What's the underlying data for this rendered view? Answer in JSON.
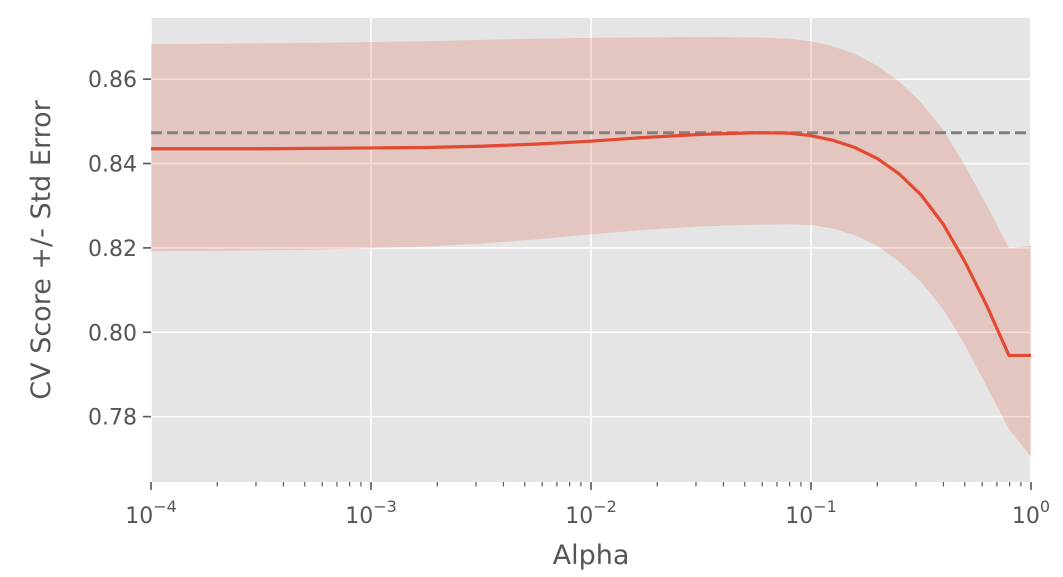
{
  "chart_data": {
    "type": "line",
    "title": "",
    "xlabel": "Alpha",
    "ylabel": "CV Score +/- Std Error",
    "xscale": "log",
    "xlim": [
      0.0001,
      1
    ],
    "ylim": [
      0.7645,
      0.8745
    ],
    "grid": true,
    "background": "#e5e5e5",
    "colors": {
      "line": "#e24a33",
      "band": "#e24a33",
      "reference": "#808080"
    },
    "x_ticks": [
      {
        "value": 0.0001,
        "base": "10",
        "exp": "−4"
      },
      {
        "value": 0.001,
        "base": "10",
        "exp": "−3"
      },
      {
        "value": 0.01,
        "base": "10",
        "exp": "−2"
      },
      {
        "value": 0.1,
        "base": "10",
        "exp": "−1"
      },
      {
        "value": 1,
        "base": "10",
        "exp": "0"
      }
    ],
    "y_ticks": [
      {
        "value": 0.78,
        "label": "0.78"
      },
      {
        "value": 0.8,
        "label": "0.80"
      },
      {
        "value": 0.82,
        "label": "0.82"
      },
      {
        "value": 0.84,
        "label": "0.84"
      },
      {
        "value": 0.86,
        "label": "0.86"
      }
    ],
    "reference_line": {
      "y": 0.8473,
      "style": "dashed"
    },
    "series": [
      {
        "x": [
          0.0001,
          0.000178,
          0.000316,
          0.000562,
          0.001,
          0.00178,
          0.00316,
          0.00562,
          0.01,
          0.0178,
          0.0316,
          0.0562,
          0.0794,
          0.1,
          0.126,
          0.158,
          0.2,
          0.251,
          0.316,
          0.398,
          0.501,
          0.631,
          0.794,
          1
        ],
        "y": [
          0.8435,
          0.8435,
          0.8435,
          0.8436,
          0.8437,
          0.8438,
          0.8441,
          0.8446,
          0.8453,
          0.8462,
          0.8469,
          0.8473,
          0.8472,
          0.8466,
          0.8455,
          0.8438,
          0.8412,
          0.8376,
          0.8326,
          0.8257,
          0.8167,
          0.8062,
          0.7945,
          0.7945
        ],
        "lower": [
          0.8192,
          0.8193,
          0.8194,
          0.8196,
          0.8199,
          0.8203,
          0.821,
          0.822,
          0.8232,
          0.8243,
          0.8251,
          0.8255,
          0.8256,
          0.8254,
          0.8246,
          0.823,
          0.8205,
          0.8168,
          0.812,
          0.8055,
          0.797,
          0.787,
          0.777,
          0.7705
        ],
        "upper": [
          0.8683,
          0.8684,
          0.8685,
          0.8686,
          0.8688,
          0.869,
          0.8693,
          0.8696,
          0.8698,
          0.8699,
          0.87,
          0.8699,
          0.8696,
          0.869,
          0.8678,
          0.866,
          0.8632,
          0.8595,
          0.8545,
          0.848,
          0.8395,
          0.83,
          0.82,
          0.8205
        ]
      }
    ]
  }
}
